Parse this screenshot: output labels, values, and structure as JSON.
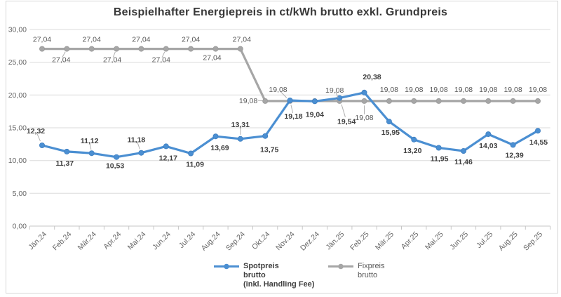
{
  "chart": {
    "title": "Beispielhafter Energiepreis in ct/kWh brutto exkl. Grundpreis"
  },
  "legend": {
    "items": [
      {
        "name": "Spotpreis brutto (inkl. Handling Fee)",
        "lines": [
          "Spotpreis",
          "brutto",
          "(inkl. Handling Fee)"
        ],
        "color": "#4b8fd2"
      },
      {
        "name": "Fixpreis brutto",
        "lines": [
          "Fixpreis",
          "brutto"
        ],
        "color": "#a6a6a6"
      }
    ],
    "position": "bottom"
  },
  "colors": {
    "spot": "#4b8fd2",
    "spot_marker_stroke": "#3d7ec0",
    "fix": "#a6a6a6",
    "fix_marker_stroke": "#9a9a9a",
    "grid": "#dbdbdb",
    "axis": "#c6c6c6",
    "leader": "#b0b0b0",
    "label_dark": "#3f3f3f",
    "label_gray": "#595959",
    "axis_text": "#666666",
    "border": "#d6d6d6"
  },
  "chart_data": {
    "type": "line",
    "title": "Beispielhafter Energiepreis in ct/kWh brutto exkl. Grundpreis",
    "xlabel": "",
    "ylabel": "",
    "grid": true,
    "legend_position": "bottom",
    "categories": [
      "Jän.24",
      "Feb.24",
      "Mär.24",
      "Apr.24",
      "Mai.24",
      "Jun.24",
      "Jul.24",
      "Aug.24",
      "Sep.24",
      "Okt.24",
      "Nov.24",
      "Dez.24",
      "Jän.25",
      "Feb.25",
      "Mär.25",
      "Apr.25",
      "Mai.25",
      "Jun.25",
      "Jul.25",
      "Aug.25",
      "Sep.25"
    ],
    "y_axis": {
      "min": 0,
      "max": 30,
      "ticks": [
        {
          "v": 30,
          "label": "30,00"
        },
        {
          "v": 25,
          "label": "25,00"
        },
        {
          "v": 20,
          "label": "20,00"
        },
        {
          "v": 15,
          "label": "15,00"
        },
        {
          "v": 10,
          "label": "10,00"
        },
        {
          "v": 5,
          "label": "5,00"
        },
        {
          "v": 0,
          "label": "0,00"
        }
      ]
    },
    "series": [
      {
        "id": "spotpreis",
        "name": "Spotpreis brutto (inkl. Handling Fee)",
        "color": "#4b8fd2",
        "marker_stroke": "#3d7ec0",
        "label_color": "#3f3f3f",
        "bold_labels": true,
        "values": [
          12.32,
          11.37,
          11.12,
          10.53,
          11.18,
          12.17,
          11.09,
          13.69,
          13.31,
          13.75,
          19.18,
          19.04,
          19.54,
          20.38,
          15.95,
          13.2,
          11.95,
          11.46,
          14.03,
          12.39,
          14.55
        ],
        "labels": [
          {
            "t": "12,32",
            "dx": -9,
            "dy": -17,
            "leader": true
          },
          {
            "t": "11,37",
            "dx": -3,
            "dy": 20
          },
          {
            "t": "11,12",
            "dx": -3,
            "dy": -14,
            "leader": true
          },
          {
            "t": "10,53",
            "dx": -2,
            "dy": 16
          },
          {
            "t": "11,18",
            "dx": -7,
            "dy": -15,
            "leader": true
          },
          {
            "t": "12,17",
            "dx": 3,
            "dy": 20
          },
          {
            "t": "11,09",
            "dx": 6,
            "dy": 19
          },
          {
            "t": "13,69",
            "dx": 6,
            "dy": 20
          },
          {
            "t": "13,31",
            "dx": 0,
            "dy": -17,
            "leader": true
          },
          {
            "t": "13,75",
            "dx": 6,
            "dy": 23
          },
          {
            "t": "19,18",
            "dx": 5,
            "dy": 26,
            "leader": true
          },
          {
            "t": "19,04",
            "dx": 0,
            "dy": 22
          },
          {
            "t": "19,54",
            "dx": 10,
            "dy": 37,
            "leader": true
          },
          {
            "t": "20,38",
            "dx": 11,
            "dy": -19
          },
          {
            "t": "15,95",
            "dx": 2,
            "dy": 19
          },
          {
            "t": "13,20",
            "dx": -2,
            "dy": 19
          },
          {
            "t": "11,95",
            "dx": 1,
            "dy": 19
          },
          {
            "t": "11,46",
            "dx": 0,
            "dy": 19
          },
          {
            "t": "14,03",
            "dx": 0,
            "dy": 20
          },
          {
            "t": "12,39",
            "dx": 2,
            "dy": 18
          },
          {
            "t": "14,55",
            "dx": 1,
            "dy": 20
          }
        ]
      },
      {
        "id": "fixpreis",
        "name": "Fixpreis brutto",
        "color": "#a6a6a6",
        "marker_stroke": "#9a9a9a",
        "label_color": "#595959",
        "bold_labels": false,
        "values": [
          27.04,
          27.04,
          27.04,
          27.04,
          27.04,
          27.04,
          27.04,
          27.04,
          27.04,
          19.08,
          19.08,
          19.08,
          19.08,
          19.08,
          19.08,
          19.08,
          19.08,
          19.08,
          19.08,
          19.08,
          19.08
        ],
        "labels": [
          {
            "t": "27,04",
            "dx": 0,
            "dy": -10
          },
          {
            "t": "27,04",
            "dx": -8,
            "dy": 19,
            "leader": true
          },
          {
            "t": "27,04",
            "dx": 0,
            "dy": -10
          },
          {
            "t": "27,04",
            "dx": -6,
            "dy": 19,
            "leader": true
          },
          {
            "t": "27,04",
            "dx": 0,
            "dy": -10
          },
          {
            "t": "27,04",
            "dx": -7,
            "dy": 19,
            "leader": true
          },
          {
            "t": "27,04",
            "dx": 0,
            "dy": -10
          },
          {
            "t": "27,04",
            "dx": -5,
            "dy": 16
          },
          {
            "t": "27,04",
            "dx": 2,
            "dy": -10
          },
          {
            "t": "19,08",
            "dx": -11,
            "dy": 3,
            "anchor": "end",
            "leader": true
          },
          {
            "t": "19,08",
            "dx": -17,
            "dy": -13,
            "leader": true
          },
          null,
          {
            "t": "19,08",
            "dx": -7,
            "dy": -12,
            "leader": true
          },
          {
            "t": "19,08",
            "dx": 0,
            "dy": 27,
            "leader": true
          },
          {
            "t": "19,08",
            "dx": 0,
            "dy": -13
          },
          {
            "t": "19,08",
            "dx": 0,
            "dy": -13
          },
          {
            "t": "19,08",
            "dx": 0,
            "dy": -13
          },
          {
            "t": "19,08",
            "dx": 0,
            "dy": -13
          },
          {
            "t": "19,08",
            "dx": 0,
            "dy": -13
          },
          {
            "t": "19,08",
            "dx": 0,
            "dy": -13
          },
          {
            "t": "19,08",
            "dx": 0,
            "dy": -13
          }
        ]
      }
    ]
  }
}
